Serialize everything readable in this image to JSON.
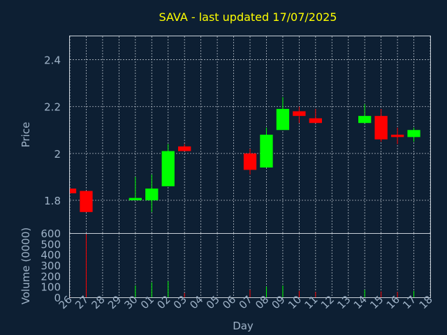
{
  "chart_data": {
    "type": "candlestick",
    "title": "SAVA - last updated 17/07/2025",
    "ylabel": "Price",
    "xlabel": "Day",
    "volume_label": "Volume (0000)",
    "ylim": [
      1.66,
      2.5
    ],
    "yticks": [
      1.8,
      2,
      2.2,
      2.4
    ],
    "ytick_labels": [
      "1.8",
      "2",
      "2.2",
      "2.4"
    ],
    "vol_ylim": [
      0,
      600
    ],
    "vol_ticks": [
      0,
      100,
      200,
      300,
      400,
      500,
      600
    ],
    "x_labels": [
      "26",
      "27",
      "28",
      "29",
      "30",
      "01",
      "02",
      "03",
      "04",
      "05",
      "06",
      "07",
      "08",
      "09",
      "10",
      "11",
      "12",
      "13",
      "14",
      "15",
      "16",
      "17",
      "18"
    ],
    "up_color": "#00ff00",
    "down_color": "#ff0000",
    "candles": [
      {
        "x": "26",
        "open": 1.85,
        "high": 1.85,
        "low": 1.83,
        "close": 1.83,
        "volume": 5
      },
      {
        "x": "27",
        "open": 1.84,
        "high": 1.84,
        "low": 1.75,
        "close": 1.75,
        "volume": 590
      },
      {
        "x": "30",
        "open": 1.8,
        "high": 1.9,
        "low": 1.8,
        "close": 1.81,
        "volume": 110
      },
      {
        "x": "01",
        "open": 1.8,
        "high": 1.91,
        "low": 1.75,
        "close": 1.85,
        "volume": 140
      },
      {
        "x": "02",
        "open": 1.86,
        "high": 2.04,
        "low": 1.86,
        "close": 2.01,
        "volume": 150
      },
      {
        "x": "03",
        "open": 2.03,
        "high": 2.04,
        "low": 2.01,
        "close": 2.01,
        "volume": 40
      },
      {
        "x": "07",
        "open": 2.0,
        "high": 2.02,
        "low": 1.91,
        "close": 1.93,
        "volume": 70
      },
      {
        "x": "08",
        "open": 1.94,
        "high": 2.11,
        "low": 1.94,
        "close": 2.08,
        "volume": 100
      },
      {
        "x": "09",
        "open": 2.1,
        "high": 2.24,
        "low": 2.1,
        "close": 2.19,
        "volume": 110
      },
      {
        "x": "10",
        "open": 2.18,
        "high": 2.2,
        "low": 2.13,
        "close": 2.16,
        "volume": 60
      },
      {
        "x": "11",
        "open": 2.15,
        "high": 2.19,
        "low": 2.13,
        "close": 2.13,
        "volume": 50
      },
      {
        "x": "14",
        "open": 2.13,
        "high": 2.21,
        "low": 2.13,
        "close": 2.16,
        "volume": 70
      },
      {
        "x": "15",
        "open": 2.16,
        "high": 2.19,
        "low": 2.05,
        "close": 2.06,
        "volume": 55
      },
      {
        "x": "16",
        "open": 2.08,
        "high": 2.11,
        "low": 2.04,
        "close": 2.07,
        "volume": 50
      },
      {
        "x": "17",
        "open": 2.07,
        "high": 2.11,
        "low": 2.05,
        "close": 2.1,
        "volume": 60
      }
    ]
  }
}
